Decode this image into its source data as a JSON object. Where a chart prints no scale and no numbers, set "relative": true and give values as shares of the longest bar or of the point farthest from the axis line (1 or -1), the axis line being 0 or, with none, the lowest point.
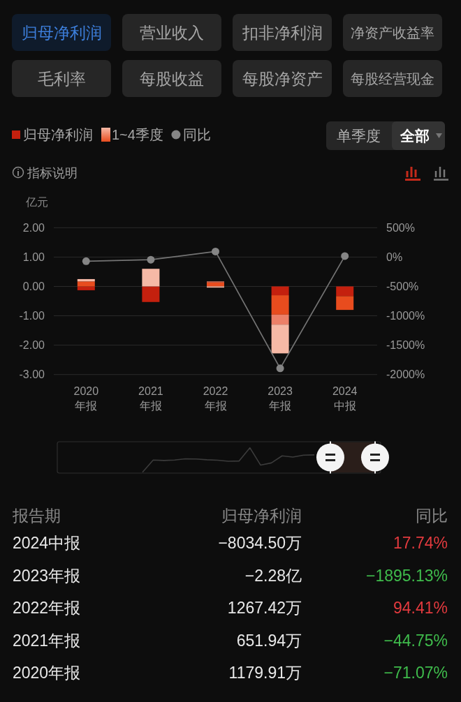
{
  "chart_data": [
    {
      "type": "other",
      "annotations": [
        "归母净利润",
        "营业收入",
        "扣非净利润",
        "净资产收益率",
        "毛利率",
        "每股收益",
        "每股净资产",
        "每股经营现金"
      ]
    },
    {
      "type": "bar",
      "stacked": true,
      "ylabel": "亿元",
      "categories": [
        "2020\n年报",
        "2021\n年报",
        "2022\n年报",
        "2023\n年报",
        "2024\n中报"
      ],
      "series": [
        {
          "color": "#c4200e",
          "values": [
            -0.13,
            -0.53,
            null,
            -0.3,
            -0.33
          ]
        },
        {
          "color": "#e84c1e",
          "values": [
            0.17,
            null,
            0.14,
            -0.66,
            -0.47
          ]
        },
        {
          "color": "#ec8068",
          "values": [
            null,
            null,
            0.03,
            -0.34,
            null
          ]
        },
        {
          "color": "#f6b9a6",
          "values": [
            0.08,
            0.6,
            -0.04,
            -0.98,
            null
          ]
        },
        {
          "name": "同比",
          "type": "line",
          "axis": "y2",
          "color": "#858585",
          "values": [
            -71.07,
            -44.75,
            94.41,
            -1895.13,
            17.74
          ]
        }
      ],
      "ylim": [
        -3,
        2
      ],
      "yticks": [
        {
          "value": 2,
          "label": "2.00"
        },
        {
          "value": 1,
          "label": "1.00"
        },
        {
          "value": 0,
          "label": "0.00"
        },
        {
          "value": -1,
          "label": "-1.00"
        },
        {
          "value": -2,
          "label": "-2.00"
        },
        {
          "value": -3,
          "label": "-3.00"
        }
      ],
      "y2lim": [
        -2000,
        500
      ],
      "y2ticks": [
        {
          "value": 500,
          "label": "500%"
        },
        {
          "value": 0,
          "label": "0%"
        },
        {
          "value": -500,
          "label": "-500%"
        },
        {
          "value": -1000,
          "label": "-1000%"
        },
        {
          "value": -1500,
          "label": "-1500%"
        },
        {
          "value": -2000,
          "label": "-2000%"
        }
      ],
      "grid": "y",
      "legend": "top left",
      "marker": "circle",
      "annotations": [
        "归母净利润",
        "1~4季度",
        "单季度",
        "全部",
        "指标说明",
        "报告期",
        "归母净利润",
        "同比",
        "2024中报",
        "−8034.50万",
        "17.74%",
        "2023年报",
        "−2.28亿",
        "−1895.13%",
        "2022年报",
        "1267.42万",
        "94.41%",
        "2021年报",
        "651.94万",
        "−44.75%",
        "2020年报",
        "1179.91万",
        "−71.07%"
      ]
    },
    {
      "type": "line",
      "relative": true,
      "categories": [
        null,
        null,
        null,
        null,
        null,
        null,
        null,
        null,
        null,
        null,
        null,
        null,
        null,
        null,
        null,
        null,
        null
      ],
      "values": [
        0,
        0.5,
        0.48,
        0.5,
        0.55,
        0.54,
        0.51,
        0.49,
        0.45,
        0.46,
        1,
        0.29,
        0.38,
        0.67,
        0.62,
        0.7,
        0.71
      ],
      "color": "#3c3c3c"
    }
  ]
}
